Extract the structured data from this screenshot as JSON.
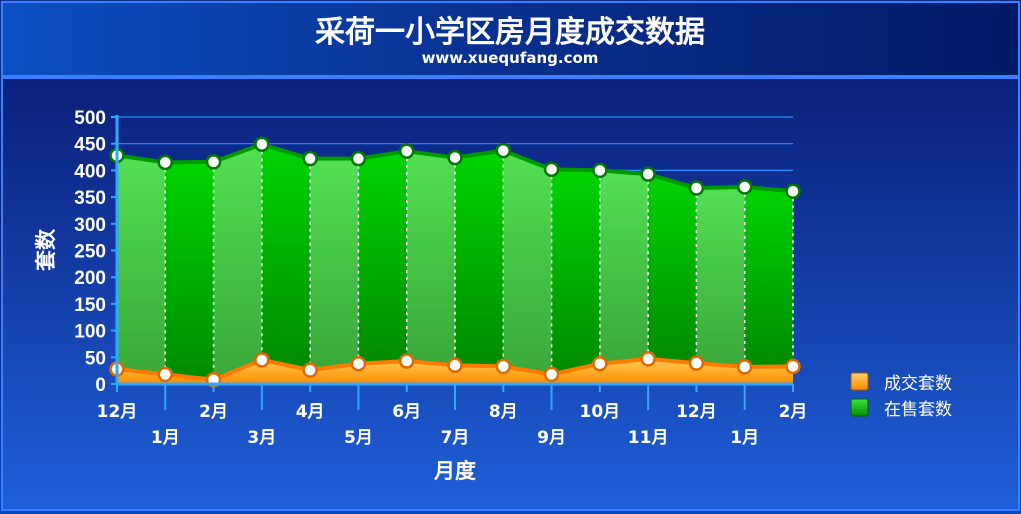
{
  "title": "采荷一小学区房月度成交数据",
  "subtitle": "www.xuequfang.com",
  "chart_data": {
    "type": "area",
    "title": "采荷一小学区房月度成交数据",
    "subtitle": "www.xuequfang.com",
    "xlabel": "月度",
    "ylabel": "套数",
    "ylim": [
      0,
      500
    ],
    "yticks": [
      0,
      50,
      100,
      150,
      200,
      250,
      300,
      350,
      400,
      450,
      500
    ],
    "grid": true,
    "legend_position": "right",
    "categories": [
      "12月",
      "1月",
      "2月",
      "3月",
      "4月",
      "5月",
      "6月",
      "7月",
      "8月",
      "9月",
      "10月",
      "11月",
      "12月",
      "1月",
      "2月"
    ],
    "series": [
      {
        "name": "成交套数",
        "color": "#ff9a00",
        "values": [
          28,
          18,
          8,
          45,
          26,
          38,
          43,
          35,
          33,
          18,
          38,
          47,
          39,
          32,
          33
        ]
      },
      {
        "name": "在售套数",
        "color": "#00b400",
        "values": [
          428,
          415,
          416,
          449,
          422,
          422,
          436,
          424,
          437,
          402,
          400,
          393,
          367,
          369,
          361
        ]
      }
    ]
  }
}
